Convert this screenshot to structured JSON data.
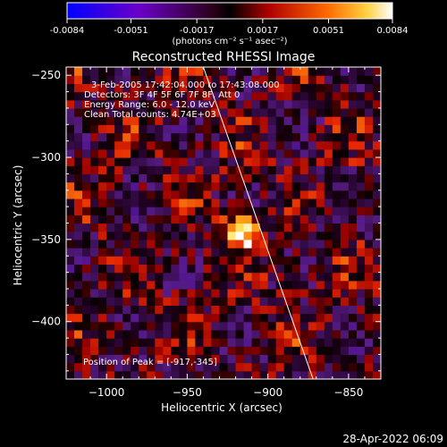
{
  "colorbar": {
    "ticks": [
      "-0.0084",
      "-0.0051",
      "-0.0017",
      "0.0017",
      "0.0051",
      "0.0084"
    ],
    "unit_label": "(photons cm⁻² s⁻¹ asec⁻²)"
  },
  "chart_data": {
    "type": "heatmap",
    "title": "Reconstructed RHESSI Image",
    "xlabel": "Heliocentric X (arcsec)",
    "ylabel": "Heliocentric Y (arcsec)",
    "xlim": [
      -1025,
      -830
    ],
    "ylim": [
      -435,
      -245
    ],
    "x_ticks": [
      "−1000",
      "−950",
      "−900",
      "−850"
    ],
    "x_tick_values": [
      -1000,
      -950,
      -900,
      -850
    ],
    "y_ticks": [
      "−250",
      "−300",
      "−350",
      "−400"
    ],
    "y_tick_values": [
      -250,
      -300,
      -350,
      -400
    ],
    "color_range": [
      -0.0084,
      0.0084
    ],
    "peak": {
      "x": -917,
      "y": -345
    },
    "limb_line": [
      [
        -940,
        -245
      ],
      [
        -872,
        -435
      ]
    ],
    "annotations": [
      "3-Feb-2005 17:42:04.000 to 17:43:08.000",
      "Detectors: 3F 4F 5F 6F 7F 8F, Att 0",
      "Energy Range: 6.0 - 12.0 keV",
      "Clean     Total counts: 4.74E+03"
    ],
    "peak_label": "Position of Peak = [-917,-345]"
  },
  "footer": {
    "timestamp": "28-Apr-2022 06:09"
  }
}
